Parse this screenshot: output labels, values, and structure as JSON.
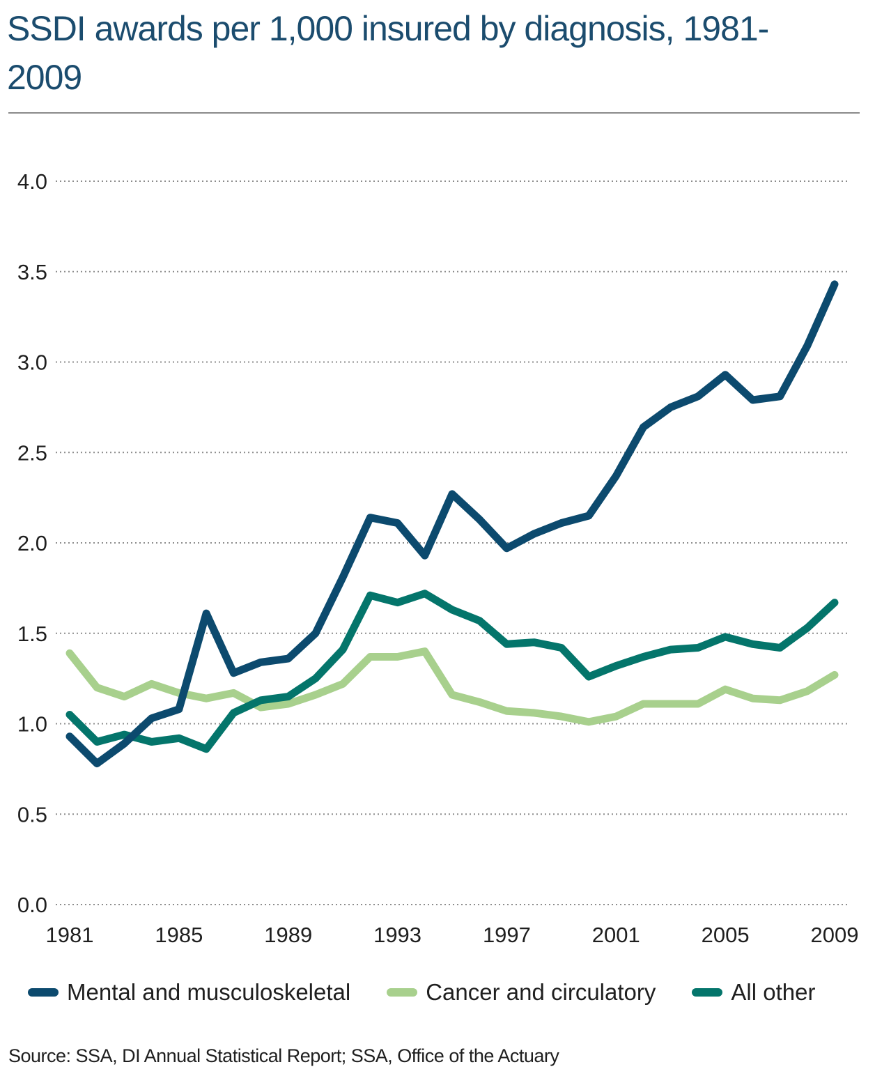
{
  "chart_data": {
    "type": "line",
    "title": "SSDI awards per 1,000 insured by diagnosis, 1981-2009",
    "x": [
      1981,
      1982,
      1983,
      1984,
      1985,
      1986,
      1987,
      1988,
      1989,
      1990,
      1991,
      1992,
      1993,
      1994,
      1995,
      1996,
      1997,
      1998,
      1999,
      2000,
      2001,
      2002,
      2003,
      2004,
      2005,
      2006,
      2007,
      2008,
      2009
    ],
    "x_ticks": [
      "1981",
      "1985",
      "1989",
      "1993",
      "1997",
      "2001",
      "2005",
      "2009"
    ],
    "y_ticks": [
      "4.0",
      "3.5",
      "3.0",
      "2.5",
      "2.0",
      "1.5",
      "1.0",
      "0.5",
      "0.0"
    ],
    "ylim": [
      0,
      4.0
    ],
    "grid": "horizontal dotted",
    "legend_position": "bottom",
    "series": [
      {
        "name": "Mental and musculoskeletal",
        "color": "#0c4a6e",
        "values": [
          0.93,
          0.78,
          0.89,
          1.03,
          1.08,
          1.61,
          1.28,
          1.34,
          1.36,
          1.5,
          1.81,
          2.14,
          2.11,
          1.93,
          2.27,
          2.13,
          1.97,
          2.05,
          2.11,
          2.15,
          2.37,
          2.64,
          2.75,
          2.81,
          2.93,
          2.79,
          2.81,
          3.09,
          3.43
        ]
      },
      {
        "name": "Cancer and circulatory",
        "color": "#a8d08d",
        "values": [
          1.39,
          1.2,
          1.15,
          1.22,
          1.17,
          1.14,
          1.17,
          1.09,
          1.11,
          1.16,
          1.22,
          1.37,
          1.37,
          1.4,
          1.16,
          1.12,
          1.07,
          1.06,
          1.04,
          1.01,
          1.04,
          1.11,
          1.11,
          1.11,
          1.19,
          1.14,
          1.13,
          1.18,
          1.27
        ]
      },
      {
        "name": "All other",
        "color": "#04756b",
        "values": [
          1.05,
          0.9,
          0.94,
          0.9,
          0.92,
          0.86,
          1.06,
          1.13,
          1.15,
          1.25,
          1.41,
          1.71,
          1.67,
          1.72,
          1.63,
          1.57,
          1.44,
          1.45,
          1.42,
          1.26,
          1.32,
          1.37,
          1.41,
          1.42,
          1.48,
          1.44,
          1.42,
          1.53,
          1.67
        ]
      }
    ],
    "source": "Source: SSA, DI Annual Statistical Report; SSA, Office of the Actuary"
  }
}
